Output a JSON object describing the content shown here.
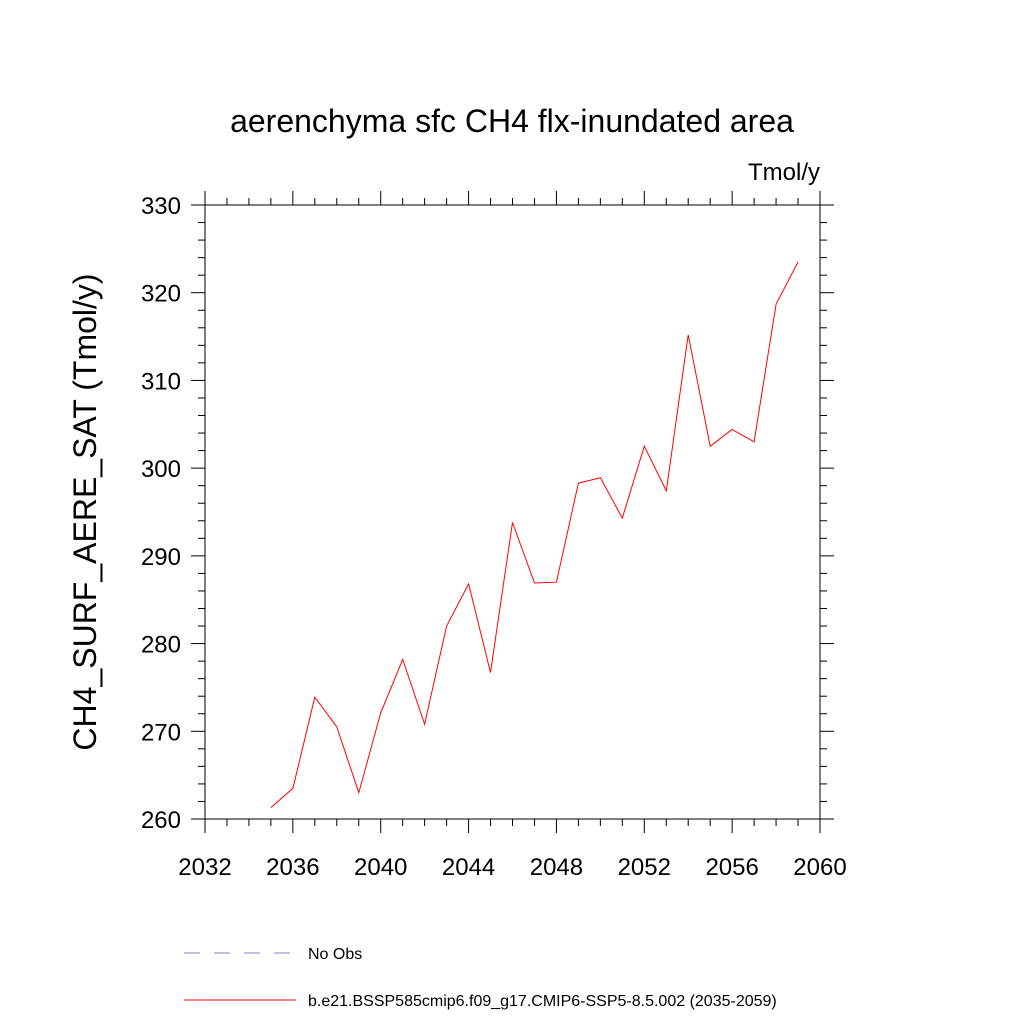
{
  "chart_data": {
    "type": "line",
    "title": "aerenchyma sfc CH4 flx-inundated area",
    "units": "Tmol/y",
    "ylabel": "CH4_SURF_AERE_SAT  (Tmol/y)",
    "xlabel": "",
    "xlim": [
      2032,
      2060
    ],
    "ylim": [
      260,
      330
    ],
    "xticks": [
      "2032",
      "2036",
      "2040",
      "2044",
      "2048",
      "2052",
      "2056",
      "2060"
    ],
    "yticks": [
      "260",
      "270",
      "280",
      "290",
      "300",
      "310",
      "320",
      "330"
    ],
    "grid": false,
    "legend_position": "bottom",
    "colors": {
      "model": "#ff0000",
      "obs": "#8080c0",
      "axis": "#000000"
    },
    "series": [
      {
        "name": "b.e21.BSSP585cmip6.f09_g17.CMIP6-SSP5-8.5.002 (2035-2059)",
        "style": "solid",
        "x": [
          2035,
          2036,
          2037,
          2038,
          2039,
          2040,
          2041,
          2042,
          2043,
          2044,
          2045,
          2046,
          2047,
          2048,
          2049,
          2050,
          2051,
          2052,
          2053,
          2054,
          2055,
          2056,
          2057,
          2058,
          2059
        ],
        "values": [
          261.3,
          263.5,
          273.9,
          270.5,
          263.0,
          272.1,
          278.2,
          270.8,
          282.0,
          286.8,
          276.7,
          293.8,
          286.9,
          287.0,
          298.3,
          298.9,
          294.3,
          302.5,
          297.4,
          315.2,
          302.5,
          304.4,
          303.0,
          318.7,
          323.5
        ]
      },
      {
        "name": "No Obs",
        "style": "dashed",
        "x": [],
        "values": []
      }
    ]
  }
}
